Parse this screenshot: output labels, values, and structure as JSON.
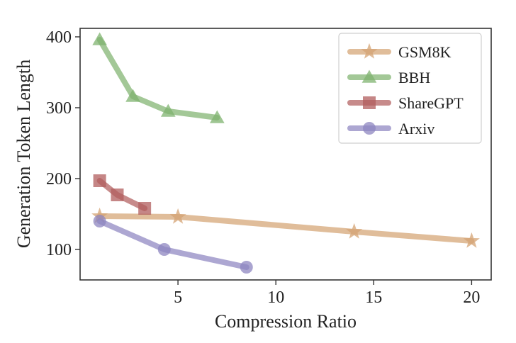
{
  "chart_data": {
    "type": "line",
    "title": "",
    "xlabel": "Compression Ratio",
    "ylabel": "Generation Token Length",
    "xlim": [
      0,
      21
    ],
    "ylim": [
      57,
      412
    ],
    "xticks": [
      5,
      10,
      15,
      20
    ],
    "yticks": [
      100,
      200,
      300,
      400
    ],
    "grid": false,
    "legend_position": "top-right",
    "series": [
      {
        "name": "GSM8K",
        "marker": "star",
        "color": "#d4a373",
        "x": [
          1,
          5,
          14,
          20
        ],
        "y": [
          147,
          146,
          125,
          112
        ]
      },
      {
        "name": "BBH",
        "marker": "triangle",
        "color": "#7fb36f",
        "x": [
          1,
          2.7,
          4.5,
          7
        ],
        "y": [
          396,
          316,
          295,
          286
        ]
      },
      {
        "name": "ShareGPT",
        "marker": "square",
        "color": "#b25e5e",
        "x": [
          1,
          1.9,
          3.3
        ],
        "y": [
          197,
          177,
          158
        ]
      },
      {
        "name": "Arxiv",
        "marker": "circle",
        "color": "#8d85c0",
        "x": [
          1,
          4.3,
          8.5
        ],
        "y": [
          140,
          100,
          75
        ]
      }
    ]
  }
}
